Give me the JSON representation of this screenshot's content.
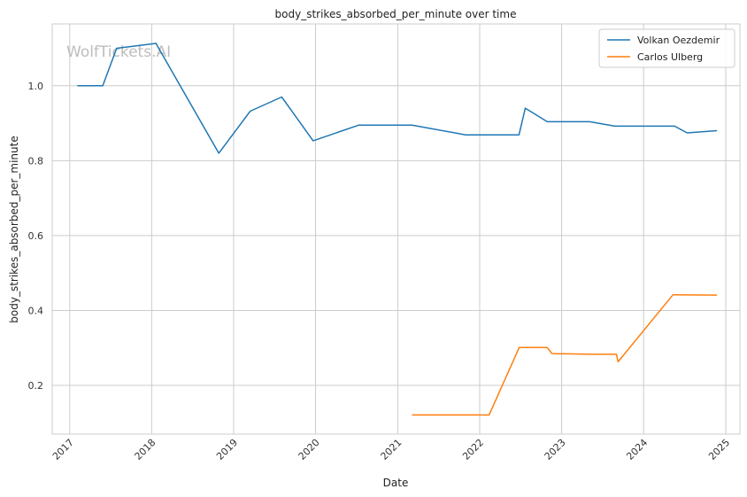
{
  "watermark": "WolfTickets.AI",
  "chart_data": {
    "type": "line",
    "title": "body_strikes_absorbed_per_minute over time",
    "xlabel": "Date",
    "ylabel": "body_strikes_absorbed_per_minute",
    "x_ticks": [
      "2017",
      "2018",
      "2019",
      "2020",
      "2021",
      "2022",
      "2023",
      "2024",
      "2025"
    ],
    "y_ticks": [
      "0.2",
      "0.4",
      "0.6",
      "0.8",
      "1.0"
    ],
    "xlim": [
      "2016-10-15",
      "2025-03-05"
    ],
    "ylim": [
      0.07,
      1.165
    ],
    "grid": true,
    "legend_position": "top-right",
    "series": [
      {
        "name": "Volkan Oezdemir",
        "color": "#1f77b4",
        "points": [
          [
            "2017-02-04",
            1.0
          ],
          [
            "2017-05-28",
            1.0
          ],
          [
            "2017-07-29",
            1.1
          ],
          [
            "2018-01-20",
            1.113
          ],
          [
            "2018-10-27",
            0.82
          ],
          [
            "2019-03-16",
            0.932
          ],
          [
            "2019-08-03",
            0.97
          ],
          [
            "2019-12-21",
            0.853
          ],
          [
            "2020-07-12",
            0.895
          ],
          [
            "2021-03-06",
            0.895
          ],
          [
            "2021-10-30",
            0.869
          ],
          [
            "2022-06-25",
            0.869
          ],
          [
            "2022-07-23",
            0.94
          ],
          [
            "2022-10-29",
            0.904
          ],
          [
            "2023-05-06",
            0.904
          ],
          [
            "2023-08-26",
            0.892
          ],
          [
            "2024-05-18",
            0.892
          ],
          [
            "2024-07-13",
            0.874
          ],
          [
            "2024-11-23",
            0.88
          ]
        ]
      },
      {
        "name": "Carlos Ulberg",
        "color": "#ff7f0e",
        "points": [
          [
            "2021-03-06",
            0.121
          ],
          [
            "2022-02-12",
            0.121
          ],
          [
            "2022-06-26",
            0.301
          ],
          [
            "2022-10-29",
            0.301
          ],
          [
            "2022-11-19",
            0.285
          ],
          [
            "2023-05-06",
            0.283
          ],
          [
            "2023-09-02",
            0.283
          ],
          [
            "2023-09-09",
            0.263
          ],
          [
            "2024-05-11",
            0.442
          ],
          [
            "2024-11-23",
            0.441
          ]
        ]
      }
    ]
  }
}
